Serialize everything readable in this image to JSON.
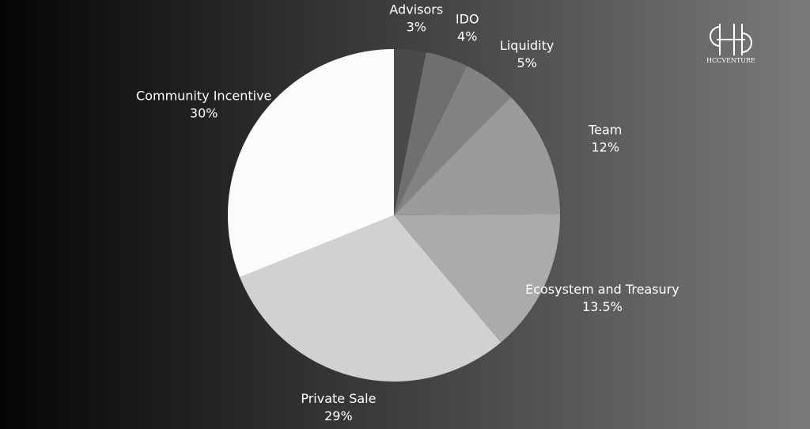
{
  "chart_data": {
    "type": "pie",
    "categories": [
      "Advisors",
      "IDO",
      "Liquidity",
      "Team",
      "Ecosystem and Treasury",
      "Private Sale",
      "Community Incentive"
    ],
    "values": [
      3,
      4,
      5,
      12,
      13.5,
      29,
      30
    ],
    "value_labels": [
      "3%",
      "4%",
      "5%",
      "12%",
      "13.5%",
      "29%",
      "30%"
    ],
    "colors": [
      "#4a4a4a",
      "#6f6f6f",
      "#838383",
      "#9b9b9b",
      "#ababab",
      "#d1d1d1",
      "#fbfbfb"
    ]
  },
  "logo": {
    "text": "HCCVENTURE"
  }
}
